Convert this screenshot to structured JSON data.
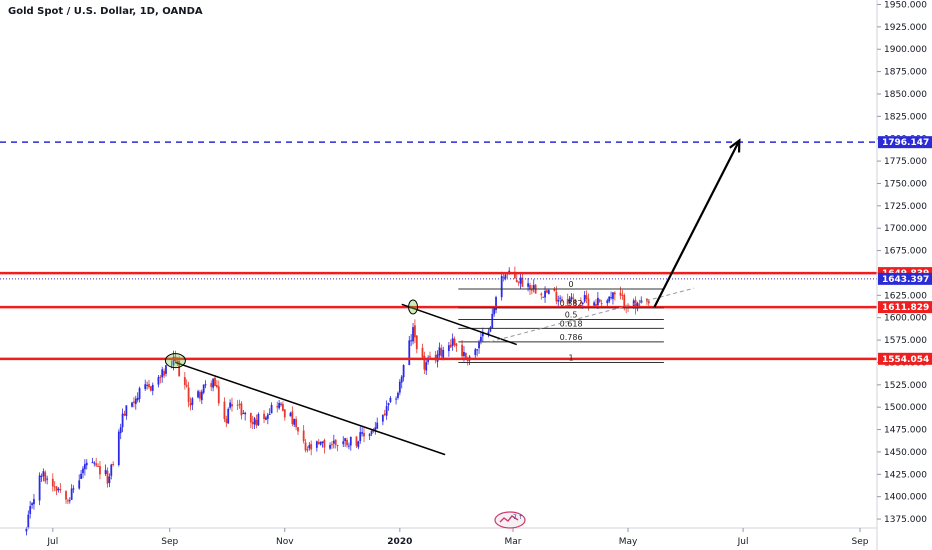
{
  "header": {
    "title": "Gold Spot / U.S. Dollar, 1D, OANDA"
  },
  "colors": {
    "bull": "#2a2ae8",
    "bear": "#e8382c",
    "sr_line": "#ef1f1f",
    "target_line": "#2b2bd6",
    "current_line": "#2b2bd6",
    "trend_line": "#000000",
    "fib_line": "#333333"
  },
  "chart_data": {
    "type": "candlestick",
    "title": "Gold Spot / U.S. Dollar, 1D, OANDA",
    "ylim": [
      1365,
      1955
    ],
    "y_ticks": [
      "1375.000",
      "1400.000",
      "1425.000",
      "1450.000",
      "1475.000",
      "1500.000",
      "1525.000",
      "1550.000",
      "1575.000",
      "1600.000",
      "1625.000",
      "1650.000",
      "1675.000",
      "1700.000",
      "1725.000",
      "1750.000",
      "1775.000",
      "1800.000",
      "1825.000",
      "1850.000",
      "1875.000",
      "1900.000",
      "1925.000",
      "1950.000"
    ],
    "x_axis": {
      "start": "2019-06-03",
      "end": "2020-09-10",
      "ticks": [
        {
          "label": "Jul",
          "date": "2019-07-01",
          "bold": false
        },
        {
          "label": "Sep",
          "date": "2019-09-01",
          "bold": false
        },
        {
          "label": "Nov",
          "date": "2019-11-01",
          "bold": false
        },
        {
          "label": "2020",
          "date": "2020-01-01",
          "bold": true
        },
        {
          "label": "Mar",
          "date": "2020-03-01",
          "bold": false
        },
        {
          "label": "May",
          "date": "2020-05-01",
          "bold": false
        },
        {
          "label": "Jul",
          "date": "2020-07-01",
          "bold": false
        },
        {
          "label": "Sep",
          "date": "2020-09-01",
          "bold": false
        }
      ]
    },
    "price_anchors": [
      [
        "2019-06-17",
        1362
      ],
      [
        "2019-06-20",
        1395
      ],
      [
        "2019-06-25",
        1425
      ],
      [
        "2019-07-03",
        1412
      ],
      [
        "2019-07-10",
        1400
      ],
      [
        "2019-07-19",
        1438
      ],
      [
        "2019-07-31",
        1420
      ],
      [
        "2019-08-07",
        1490
      ],
      [
        "2019-08-13",
        1510
      ],
      [
        "2019-08-23",
        1525
      ],
      [
        "2019-09-04",
        1552
      ],
      [
        "2019-09-12",
        1505
      ],
      [
        "2019-09-24",
        1530
      ],
      [
        "2019-10-01",
        1480
      ],
      [
        "2019-10-03",
        1510
      ],
      [
        "2019-10-15",
        1482
      ],
      [
        "2019-10-28",
        1505
      ],
      [
        "2019-11-05",
        1485
      ],
      [
        "2019-11-12",
        1452
      ],
      [
        "2019-11-26",
        1460
      ],
      [
        "2019-12-10",
        1464
      ],
      [
        "2019-12-20",
        1478
      ],
      [
        "2019-12-31",
        1518
      ],
      [
        "2020-01-06",
        1570
      ],
      [
        "2020-01-08",
        1585
      ],
      [
        "2020-01-14",
        1545
      ],
      [
        "2020-01-29",
        1575
      ],
      [
        "2020-02-05",
        1555
      ],
      [
        "2020-02-11",
        1565
      ],
      [
        "2020-02-19",
        1600
      ],
      [
        "2020-02-24",
        1650
      ],
      [
        "2020-03-06",
        1640
      ],
      [
        "2020-03-19",
        1628
      ],
      [
        "2020-04-01",
        1620
      ],
      [
        "2020-04-14",
        1618
      ],
      [
        "2020-04-24",
        1624
      ],
      [
        "2020-05-05",
        1612
      ],
      [
        "2020-05-12",
        1614
      ]
    ],
    "horizontal_levels": [
      {
        "price": 1796.147,
        "label": "1796.147",
        "style": "dashed",
        "kind": "target"
      },
      {
        "price": 1649.839,
        "label": "1649.839",
        "style": "solid",
        "kind": "resistance"
      },
      {
        "price": 1643.397,
        "label": "1643.397",
        "style": "dotted",
        "kind": "current"
      },
      {
        "price": 1611.829,
        "label": "1611.829",
        "style": "solid",
        "kind": "support"
      },
      {
        "price": 1554.054,
        "label": "1554.054",
        "style": "solid",
        "kind": "support"
      }
    ],
    "fib_retracement": {
      "start_date": "2020-02-01",
      "end_date": "2020-05-20",
      "levels": [
        {
          "label": "0",
          "price": 1632
        },
        {
          "label": "0.382",
          "price": 1611
        },
        {
          "label": "0.5",
          "price": 1598
        },
        {
          "label": "0.618",
          "price": 1588
        },
        {
          "label": "0.786",
          "price": 1573
        },
        {
          "label": "1",
          "price": 1550
        }
      ]
    },
    "trend_lines": [
      {
        "from": [
          "2019-09-04",
          1550
        ],
        "to": [
          "2020-01-25",
          1447
        ]
      },
      {
        "from": [
          "2020-01-02",
          1615
        ],
        "to": [
          "2020-03-03",
          1570
        ]
      }
    ],
    "dashed_trend": {
      "from": [
        "2020-02-18",
        1573
      ],
      "to": [
        "2020-06-05",
        1633
      ]
    },
    "projection_arrow": {
      "from": [
        "2020-05-15",
        1612
      ],
      "to": [
        "2020-06-29",
        1798
      ]
    },
    "circled_points": [
      [
        "2019-09-04",
        1552
      ],
      [
        "2020-01-08",
        1612
      ]
    ]
  }
}
